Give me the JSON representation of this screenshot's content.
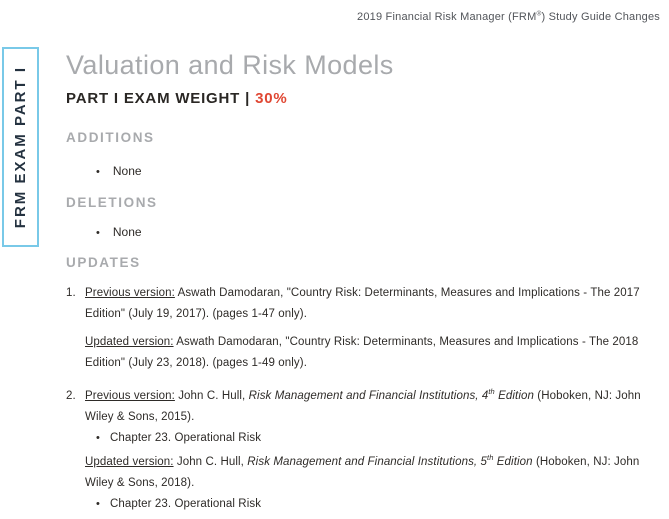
{
  "header": {
    "text": "2019 Financial Risk Manager (FRM",
    "reg": "®",
    "text_end": ") Study Guide Changes"
  },
  "sidebar": {
    "label": "FRM EXAM PART I"
  },
  "glyphs": {
    "bullet": "•"
  },
  "colors": {
    "accent_orange": "#e04733",
    "sidebar_border_cyan": "#79c9e8",
    "heading_gray": "#a8aaad",
    "body_text": "#2e2b28"
  },
  "main": {
    "title": "Valuation and Risk Models",
    "exam_weight": {
      "label": "PART I EXAM WEIGHT",
      "separator": "|",
      "value": "30%"
    },
    "additions": {
      "heading": "ADDITIONS",
      "items": [
        "None"
      ]
    },
    "deletions": {
      "heading": "DELETIONS",
      "items": [
        "None"
      ]
    },
    "updates": {
      "heading": "UPDATES",
      "items": [
        {
          "number": "1.",
          "previous": {
            "label": "Previous version:",
            "text": " Aswath Damodaran, \"Country Risk: Determinants, Measures and Implications - The 2017 Edition\" (July 19, 2017). (pages 1-47 only)."
          },
          "updated": {
            "label": "Updated version:",
            "text": " Aswath Damodaran, \"Country Risk: Determinants, Measures and Implications - The 2018 Edition\" (July 23, 2018). (pages 1-49 only)."
          }
        },
        {
          "number": "2.",
          "previous": {
            "label": "Previous version:",
            "pre": " John C. Hull, ",
            "title_italic": "Risk Management and Financial Institutions, 4",
            "ordinal": "th",
            "title_italic_end": " Edition",
            "post": " (Hoboken, NJ: John Wiley & Sons, 2015).",
            "bullet": "Chapter 23. Operational Risk"
          },
          "updated": {
            "label": "Updated version:",
            "pre": " John C. Hull, ",
            "title_italic": "Risk Management and Financial Institutions, 5",
            "ordinal": "th",
            "title_italic_end": " Edition",
            "post": " (Hoboken, NJ: John Wiley & Sons, 2018).",
            "bullet": "Chapter 23. Operational Risk"
          }
        }
      ]
    }
  }
}
